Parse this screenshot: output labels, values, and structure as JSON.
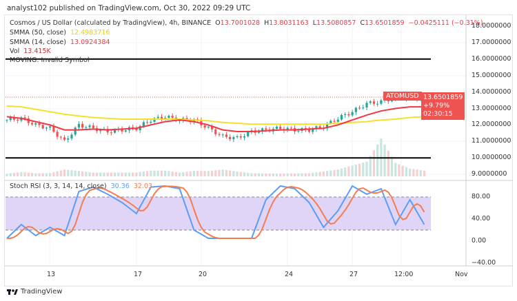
{
  "header": {
    "published": "analyst102 published on TradingView.com, Oct 30, 2022 09:29 UTC"
  },
  "legend": {
    "symbol": "Cosmos / US Dollar (calculated by TradingView), 4h, BINANCE",
    "o_label": "O",
    "o": "13.7001028",
    "h_label": "H",
    "h": "13.8031163",
    "l_label": "L",
    "l": "13.5080857",
    "c_label": "C",
    "c": "13.6501859",
    "change": "−0.0425111 (−0.31%)",
    "smma50_label": "SMMA (50, close)",
    "smma50": "12.4983716",
    "smma14_label": "SMMA (14, close)",
    "smma14": "13.0924384",
    "vol_label": "Vol",
    "vol": "13.415K",
    "moving": "MOVING: Invalid Symbol",
    "stoch_label": "Stoch RSI (3, 3, 14, 14, close)",
    "stoch_k": "30.36",
    "stoch_d": "32.03"
  },
  "price_tag": {
    "symbol": "ATOMUSD",
    "price": "13.6501859",
    "change": "+9.79%",
    "countdown": "02:30:15"
  },
  "colors": {
    "up": "#26a69a",
    "down": "#ef5350",
    "smma50": "#f5e02a",
    "smma14": "#f23645",
    "k": "#5b9cf6",
    "d": "#f57c4e",
    "stoch_band": "#e1d5f7"
  },
  "chart_data": [
    {
      "type": "candlestick",
      "price_axis": [
        "18.0000000",
        "17.0000000",
        "16.0000000",
        "15.0000000",
        "14.0000000",
        "13.0000000",
        "12.0000000",
        "11.0000000",
        "10.0000000",
        "9.0000000"
      ],
      "ylim": [
        9,
        18
      ],
      "x_ticks": [
        "13",
        "17",
        "20",
        "24",
        "27",
        "12:00",
        "Nov"
      ],
      "horizontal_lines": [
        16.0,
        10.0
      ],
      "close_approx": [
        12.3,
        12.4,
        12.0,
        11.8,
        11.0,
        12.0,
        11.8,
        11.6,
        11.7,
        11.8,
        12.3,
        12.5,
        12.3,
        12.3,
        11.8,
        11.3,
        11.2,
        11.6,
        11.7,
        11.8,
        11.7,
        11.7,
        11.9,
        12.4,
        12.8,
        13.3,
        13.4,
        13.7,
        13.7,
        13.65
      ],
      "smma50_approx": [
        13.15,
        13.1,
        12.95,
        12.8,
        12.65,
        12.55,
        12.45,
        12.4,
        12.35,
        12.35,
        12.35,
        12.35,
        12.35,
        12.3,
        12.25,
        12.15,
        12.1,
        12.05,
        12.05,
        12.05,
        12.05,
        12.05,
        12.05,
        12.1,
        12.15,
        12.2,
        12.3,
        12.35,
        12.45,
        12.5
      ],
      "smma14_approx": [
        12.5,
        12.4,
        12.2,
        12.0,
        11.7,
        11.7,
        11.75,
        11.7,
        11.75,
        11.8,
        12.0,
        12.2,
        12.3,
        12.2,
        12.0,
        11.7,
        11.6,
        11.6,
        11.65,
        11.7,
        11.7,
        11.75,
        11.8,
        12.0,
        12.3,
        12.6,
        12.85,
        13.0,
        13.1,
        13.1
      ],
      "volume_approx": [
        2,
        3,
        2,
        2,
        4,
        3,
        2,
        2,
        2,
        2,
        3,
        3,
        2,
        3,
        3,
        4,
        3,
        2,
        2,
        2,
        2,
        2,
        3,
        4,
        6,
        8,
        20,
        7,
        4,
        3
      ]
    },
    {
      "type": "line",
      "title": "Stoch RSI (3, 3, 14, 14, close)",
      "y_axis": [
        "80.00",
        "40.00",
        "0.00",
        "−40.00"
      ],
      "ylim": [
        -40,
        100
      ],
      "band": [
        20,
        80
      ],
      "k_approx": [
        5,
        30,
        10,
        25,
        10,
        90,
        98,
        85,
        70,
        50,
        98,
        100,
        95,
        20,
        5,
        5,
        5,
        5,
        75,
        100,
        95,
        70,
        25,
        55,
        100,
        85,
        95,
        30,
        75,
        30
      ]
    }
  ]
}
